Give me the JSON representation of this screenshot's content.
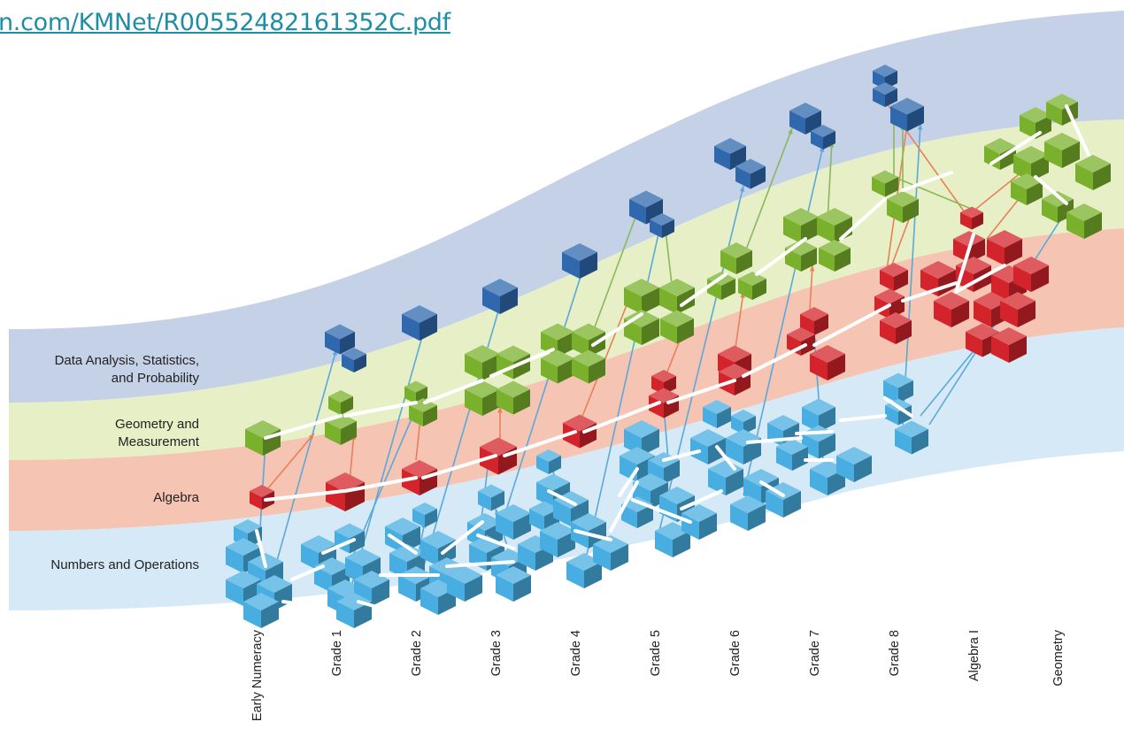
{
  "link": {
    "text": "n.com/KMNet/R00552482161352C.pdf"
  },
  "bands": [
    {
      "id": "data",
      "label_lines": [
        "Data Analysis, Statistics,",
        "and Probability"
      ],
      "color": "#c5d1e6"
    },
    {
      "id": "geometry",
      "label_lines": [
        "Geometry and",
        "Measurement"
      ],
      "color": "#e6efc5"
    },
    {
      "id": "algebra",
      "label_lines": [
        "Algebra"
      ],
      "color": "#f5c4b2"
    },
    {
      "id": "numbers",
      "label_lines": [
        "Numbers and Operations"
      ],
      "color": "#d5e9f6"
    }
  ],
  "grades": [
    "Early Numeracy",
    "Grade 1",
    "Grade 2",
    "Grade 3",
    "Grade 4",
    "Grade 5",
    "Grade 6",
    "Grade 7",
    "Grade 8",
    "Algebra I",
    "Geometry"
  ],
  "colors": {
    "data_cube": "#2f68ad",
    "geometry_cube": "#79b12c",
    "algebra_cube": "#d3242b",
    "numbers_cube": "#48aee2",
    "arrow_blue": "#5aa9d8",
    "arrow_orange": "#e8805a",
    "arrow_green": "#8bb85a",
    "arrow_white": "#ffffff"
  }
}
